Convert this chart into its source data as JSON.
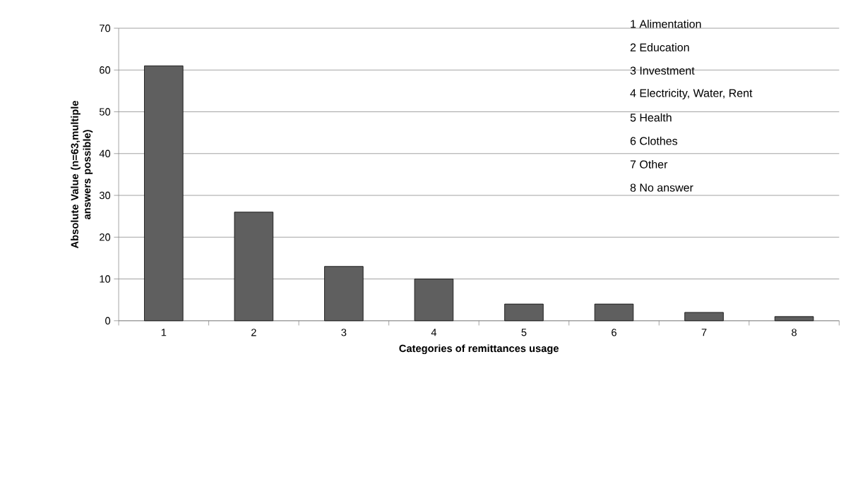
{
  "chart_data": {
    "type": "bar",
    "xlabel": "Categories of remittances usage",
    "ylabel": "Absolute Value (n=63,multiple answers possible)",
    "categories": [
      "1",
      "2",
      "3",
      "4",
      "5",
      "6",
      "7",
      "8"
    ],
    "values": [
      61,
      26,
      13,
      10,
      4,
      4,
      2,
      1
    ],
    "color": "#5f5f5f",
    "ylim": [
      0,
      70
    ],
    "yticks": [
      0,
      10,
      20,
      30,
      40,
      50,
      60,
      70
    ],
    "grid": "y",
    "annotations": [
      "1 Alimentation",
      "2 Education",
      "3 Investment",
      "4 Electricity, Water, Rent",
      "5 Health",
      "6 Clothes",
      "7 Other",
      "8 No answer"
    ]
  }
}
